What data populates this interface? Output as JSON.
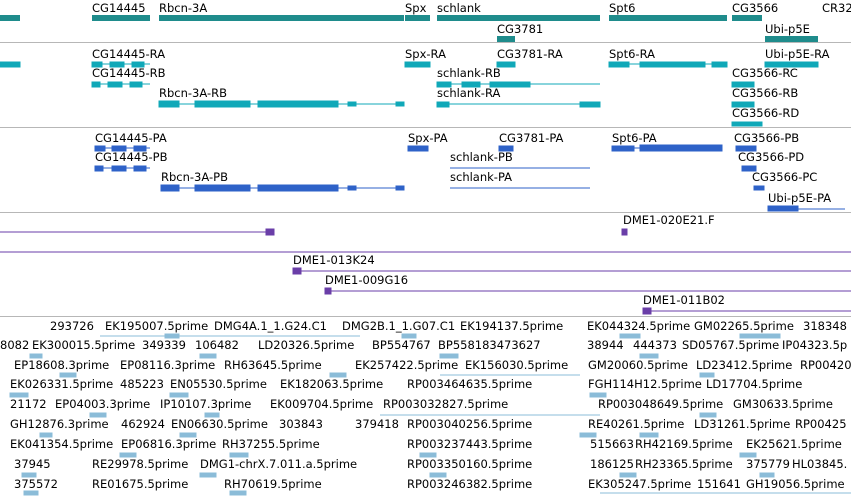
{
  "colors": {
    "gene": "#1f8c8c",
    "mrna": "#10a8b8",
    "protein": "#2e62c8",
    "bac": "#6a3ea8",
    "est": "#8bbcd8",
    "separator": "#b7b7b7"
  },
  "gene_track": {
    "labels": [
      "CG14445",
      "Rbcn-3A",
      "Spx",
      "schlank",
      "CG3781",
      "Spt6",
      "CG3566",
      "Ubi-p5E",
      "CR32"
    ]
  },
  "mrna_track": {
    "labels": [
      "CG14445-RA",
      "CG14445-RB",
      "Rbcn-3A-RB",
      "Spx-RA",
      "CG3781-RA",
      "schlank-RB",
      "schlank-RA",
      "Spt6-RA",
      "Ubi-p5E-RA",
      "CG3566-RC",
      "CG3566-RB",
      "CG3566-RD"
    ]
  },
  "protein_track": {
    "labels": [
      "CG14445-PA",
      "CG14445-PB",
      "Rbcn-3A-PB",
      "Spx-PA",
      "CG3781-PA",
      "schlank-PB",
      "schlank-PA",
      "Spt6-PA",
      "CG3566-PB",
      "CG3566-PD",
      "CG3566-PC",
      "Ubi-p5E-PA"
    ]
  },
  "bac_track": {
    "labels": [
      "DME1-020E21.F",
      "DME1-013K24",
      "DME1-009G16",
      "DME1-011B02"
    ]
  },
  "est_track": {
    "labels": [
      "293726",
      "EK195007.5prime",
      "DMG4A.1_1.G24.C1",
      "DMG2B.1_1.G07.C1",
      "EK194137.5prime",
      "EK044324.5prime",
      "GM02265.5prime",
      "318348",
      "8082",
      "EK300015.5prime",
      "349339",
      "106482",
      "LD20326.5prime",
      "BP554767",
      "BP558183473627",
      "38944",
      "444373",
      "SD05767.5prime",
      "IP04323.5p",
      "EP18608.3prime",
      "EP08116.3prime",
      "RH63645.5prime",
      "EK257422.5prime",
      "EK156030.5prime",
      "GM20060.5prime",
      "LD23412.5prime",
      "RP00420",
      "EK026331.5prime",
      "485223",
      "EN05530.5prime",
      "EK182063.5prime",
      "RP003464635.5prime",
      "FGH114H12.5prime",
      "LD17704.5prime",
      "21172",
      "EP04003.3prime",
      "IP10107.3prime",
      "EK009704.5prime",
      "RP003032827.5prime",
      "RP003048649.5prime",
      "GM30633.5prime",
      "GH12876.3prime",
      "462924",
      "EN06630.5prime",
      "303843",
      "379418",
      "RP003040256.5prime",
      "RE40261.5prime",
      "LD31261.5prime",
      "RP00425",
      "EK041354.5prime",
      "EP06816.3prime",
      "RH37255.5prime",
      "RP003237443.5prime",
      "515663",
      "RH42169.5prime",
      "EK25621.5prime",
      "37945",
      "RE29978.5prime",
      "DMG1-chrX.7.011.a.5prime",
      "RP003350160.5prime",
      "186125",
      "RH23365.5prime",
      "375779",
      "HL03845.",
      "375572",
      "RE01675.5prime",
      "RH70619.5prime",
      "RP003246382.5prime",
      "EK305247.5prime",
      "151641",
      "GH19056.5prime"
    ]
  }
}
